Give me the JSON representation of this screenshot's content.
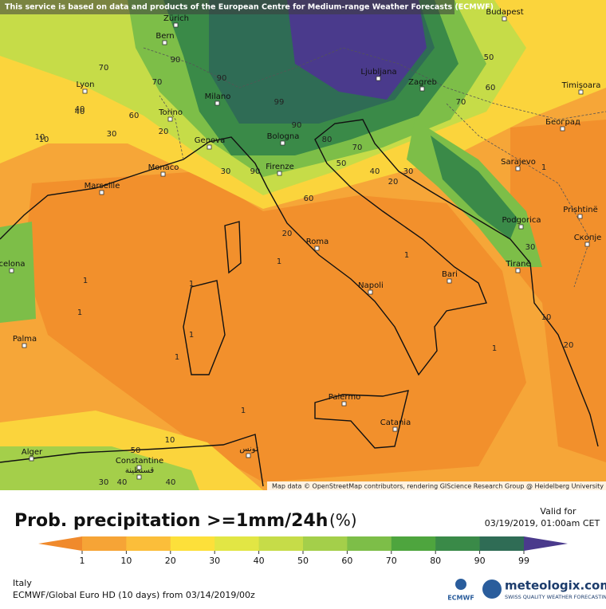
{
  "header": {
    "notice": "This service is based on data and products of the European Centre for Medium-range Weather Forecasts (ECMWF)"
  },
  "map": {
    "cities": [
      "Zürich",
      "Bern",
      "Lyon",
      "Torino",
      "Milano",
      "Genova",
      "Monaco",
      "Marseille",
      "Bologna",
      "Firenze",
      "Ljubljana",
      "Zagreb",
      "Budapest",
      "Timișoara",
      "Београд",
      "Sarajevo",
      "Podgorica",
      "Prishtinë",
      "Скопје",
      "Tiranë",
      "Roma",
      "Napoli",
      "Bari",
      "Palermo",
      "Catania",
      "Palma",
      "celona",
      "Alger",
      "Constantine",
      "قسنطينة",
      "تونس"
    ],
    "contour_labels": [
      "70",
      "40",
      "10",
      "30",
      "20",
      "90",
      "70",
      "60",
      "90",
      "99",
      "90",
      "80",
      "70",
      "50",
      "40",
      "30",
      "20",
      "90",
      "60",
      "20",
      "1",
      "1",
      "1",
      "1",
      "1",
      "1",
      "1",
      "10",
      "50",
      "30",
      "40",
      "40",
      "30",
      "70",
      "50",
      "60",
      "1",
      "10",
      "20",
      "30",
      "10",
      "40",
      "1",
      "1"
    ],
    "attribution": "Map data © OpenStreetMap contributors, rendering GIScience Research Group @ Heidelberg University"
  },
  "legend": {
    "title": "Prob. precipitation >=1mm/24h",
    "unit": "(%)",
    "valid_label": "Valid for",
    "valid_time": "03/19/2019, 01:00am CET",
    "ticks": [
      1,
      10,
      20,
      30,
      40,
      50,
      60,
      70,
      80,
      90,
      99
    ],
    "colors": [
      "#f08a2c",
      "#f6a436",
      "#fbbe3a",
      "#fde03a",
      "#e2e644",
      "#c6dc48",
      "#a4cf4a",
      "#7dbe48",
      "#4ea53e",
      "#3a8a48",
      "#2f6c55",
      "#4a3a8c"
    ]
  },
  "footer": {
    "region": "Italy",
    "model": "ECMWF/Global Euro HD (10 days) from 03/14/2019/00z",
    "ecmwf": "ECMWF",
    "brand": "meteologix.com",
    "tagline": "SWISS QUALITY WEATHER FORECASTING"
  }
}
